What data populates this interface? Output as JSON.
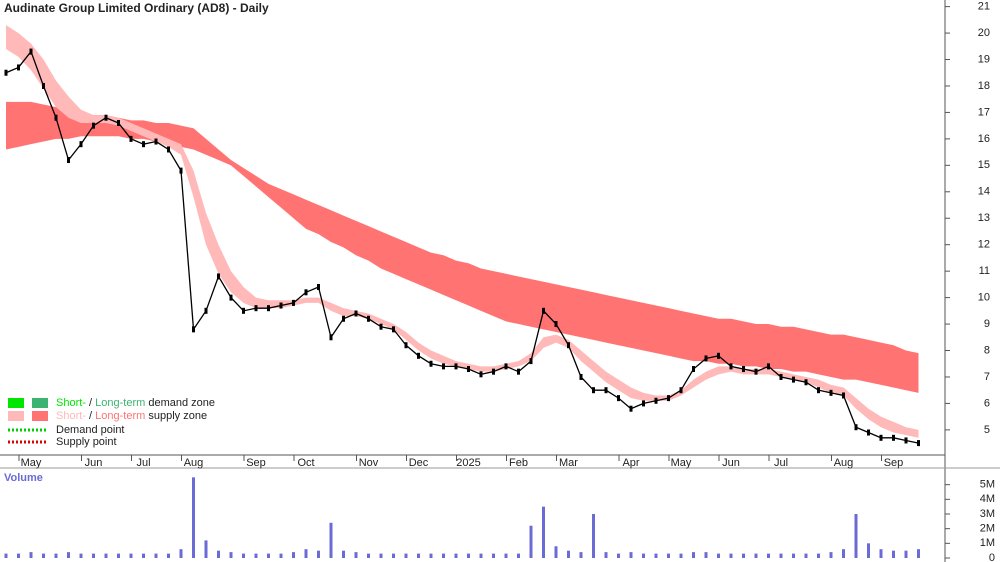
{
  "chart_data": [
    {
      "type": "stock",
      "title": "Audinate Group Limited Ordinary (AD8) - Daily",
      "categories": [
        null,
        null,
        "May",
        null,
        null,
        null,
        null,
        "Jun",
        null,
        null,
        null,
        "Jul",
        null,
        null,
        null,
        "Aug",
        null,
        null,
        null,
        null,
        "Sep",
        null,
        null,
        null,
        "Oct",
        null,
        null,
        null,
        null,
        "Nov",
        null,
        null,
        null,
        "Dec",
        null,
        null,
        null,
        "2025",
        null,
        null,
        null,
        "Feb",
        null,
        null,
        null,
        "Mar",
        null,
        null,
        null,
        null,
        "Apr",
        null,
        null,
        null,
        "May",
        null,
        null,
        null,
        "Jun",
        null,
        null,
        null,
        "Jul",
        null,
        null,
        null,
        null,
        "Aug",
        null,
        null,
        null,
        "Sep",
        null,
        null
      ],
      "ylim": [
        4.05,
        21.25
      ],
      "yticks": [
        5,
        6,
        7,
        8,
        9,
        10,
        11,
        12,
        13,
        14,
        15,
        16,
        17,
        18,
        19,
        20,
        21
      ],
      "price": {
        "color": "#000000",
        "values": [
          18.5,
          18.7,
          19.3,
          18.0,
          16.8,
          15.2,
          15.8,
          16.5,
          16.8,
          16.6,
          16.0,
          15.8,
          15.9,
          15.6,
          14.8,
          8.8,
          9.5,
          10.8,
          10.0,
          9.5,
          9.6,
          9.6,
          9.7,
          9.8,
          10.2,
          10.4,
          8.5,
          9.2,
          9.4,
          9.2,
          8.9,
          8.8,
          8.2,
          7.8,
          7.5,
          7.4,
          7.4,
          7.3,
          7.1,
          7.2,
          7.4,
          7.2,
          7.6,
          9.5,
          9.0,
          8.2,
          7.0,
          6.5,
          6.5,
          6.2,
          5.8,
          6.0,
          6.1,
          6.2,
          6.5,
          7.3,
          7.7,
          7.8,
          7.4,
          7.3,
          7.2,
          7.4,
          7.0,
          6.9,
          6.8,
          6.5,
          6.4,
          6.3,
          5.1,
          4.9,
          4.7,
          4.7,
          4.6,
          4.5
        ]
      },
      "bands": [
        {
          "color": "#ff7373",
          "upper": [
            17.4,
            17.4,
            17.4,
            17.3,
            17.2,
            17.1,
            17.0,
            16.9,
            16.9,
            16.8,
            16.7,
            16.7,
            16.6,
            16.6,
            16.5,
            16.4,
            16.0,
            15.6,
            15.2,
            14.9,
            14.6,
            14.3,
            14.1,
            13.9,
            13.7,
            13.5,
            13.3,
            13.1,
            12.9,
            12.7,
            12.5,
            12.3,
            12.1,
            11.9,
            11.7,
            11.6,
            11.4,
            11.3,
            11.1,
            11.0,
            10.9,
            10.8,
            10.7,
            10.6,
            10.5,
            10.4,
            10.3,
            10.2,
            10.1,
            10.0,
            9.9,
            9.8,
            9.7,
            9.6,
            9.5,
            9.4,
            9.3,
            9.2,
            9.2,
            9.1,
            9.0,
            9.0,
            8.9,
            8.9,
            8.8,
            8.7,
            8.6,
            8.6,
            8.5,
            8.4,
            8.3,
            8.2,
            8.0,
            7.9
          ],
          "lower": [
            15.6,
            15.7,
            15.8,
            15.9,
            16.0,
            16.0,
            16.1,
            16.1,
            16.1,
            16.1,
            16.0,
            16.0,
            15.9,
            15.8,
            15.7,
            15.6,
            15.4,
            15.2,
            15.0,
            14.6,
            14.2,
            13.8,
            13.4,
            13.0,
            12.6,
            12.4,
            12.1,
            11.9,
            11.6,
            11.4,
            11.1,
            10.9,
            10.7,
            10.5,
            10.3,
            10.1,
            9.9,
            9.7,
            9.5,
            9.3,
            9.1,
            9.0,
            8.9,
            8.8,
            8.7,
            8.6,
            8.5,
            8.4,
            8.3,
            8.2,
            8.1,
            8.0,
            7.9,
            7.8,
            7.7,
            7.6,
            7.6,
            7.5,
            7.5,
            7.4,
            7.4,
            7.3,
            7.3,
            7.2,
            7.2,
            7.1,
            7.0,
            6.9,
            6.9,
            6.8,
            6.7,
            6.6,
            6.5,
            6.4
          ]
        },
        {
          "color": "#ffb9b9",
          "upper": [
            20.3,
            20.0,
            19.6,
            19.0,
            18.2,
            17.6,
            17.1,
            16.9,
            16.9,
            16.8,
            16.6,
            16.4,
            16.2,
            16.0,
            15.8,
            14.8,
            13.2,
            12.0,
            11.0,
            10.4,
            10.0,
            9.9,
            9.9,
            9.9,
            10.0,
            10.0,
            9.8,
            9.6,
            9.5,
            9.4,
            9.2,
            9.0,
            8.7,
            8.3,
            8.0,
            7.8,
            7.6,
            7.5,
            7.4,
            7.4,
            7.5,
            7.6,
            7.9,
            8.5,
            8.6,
            8.4,
            8.0,
            7.6,
            7.2,
            6.9,
            6.6,
            6.4,
            6.3,
            6.3,
            6.5,
            6.9,
            7.2,
            7.4,
            7.4,
            7.3,
            7.3,
            7.3,
            7.2,
            7.1,
            7.0,
            6.9,
            6.7,
            6.6,
            6.2,
            5.8,
            5.5,
            5.3,
            5.1,
            5.0
          ],
          "lower": [
            19.4,
            19.1,
            18.6,
            17.9,
            17.2,
            16.8,
            16.6,
            16.6,
            16.6,
            16.5,
            16.3,
            16.1,
            15.9,
            15.7,
            15.4,
            13.8,
            12.0,
            10.9,
            10.2,
            9.8,
            9.6,
            9.6,
            9.6,
            9.7,
            9.8,
            9.8,
            9.5,
            9.3,
            9.3,
            9.2,
            9.0,
            8.8,
            8.4,
            8.0,
            7.7,
            7.5,
            7.4,
            7.3,
            7.2,
            7.2,
            7.3,
            7.4,
            7.6,
            8.1,
            8.3,
            8.1,
            7.6,
            7.2,
            6.8,
            6.5,
            6.2,
            6.1,
            6.1,
            6.1,
            6.3,
            6.6,
            6.9,
            7.1,
            7.2,
            7.1,
            7.1,
            7.1,
            7.0,
            6.9,
            6.8,
            6.6,
            6.4,
            6.3,
            5.8,
            5.4,
            5.1,
            4.9,
            4.8,
            4.7
          ]
        }
      ],
      "legend": {
        "zones": [
          {
            "short": "Short-",
            "sep": "/",
            "long": "Long-term",
            "label": "demand zone",
            "short_color": "#00e600",
            "long_color": "#3cb371"
          },
          {
            "short": "Short-",
            "sep": "/",
            "long": "Long-term",
            "label": "supply zone",
            "short_color": "#ffb9b9",
            "long_color": "#ff7373"
          }
        ],
        "points": [
          {
            "label": "Demand point",
            "color": "#00cc00"
          },
          {
            "label": "Supply point",
            "color": "#dd0000"
          }
        ]
      }
    },
    {
      "type": "bar",
      "title": "Volume",
      "color": "#6b6bd6",
      "values": [
        0.3,
        0.3,
        0.4,
        0.3,
        0.3,
        0.4,
        0.3,
        0.3,
        0.3,
        0.3,
        0.3,
        0.3,
        0.3,
        0.3,
        0.6,
        5.5,
        1.2,
        0.5,
        0.4,
        0.3,
        0.3,
        0.3,
        0.3,
        0.4,
        0.6,
        0.5,
        2.4,
        0.5,
        0.4,
        0.3,
        0.3,
        0.3,
        0.3,
        0.3,
        0.3,
        0.3,
        0.3,
        0.3,
        0.3,
        0.3,
        0.3,
        0.3,
        2.2,
        3.5,
        0.8,
        0.5,
        0.4,
        3.0,
        0.4,
        0.3,
        0.4,
        0.3,
        0.3,
        0.3,
        0.3,
        0.4,
        0.4,
        0.3,
        0.3,
        0.3,
        0.3,
        0.3,
        0.3,
        0.3,
        0.3,
        0.3,
        0.4,
        0.6,
        3.0,
        1.0,
        0.6,
        0.5,
        0.5,
        0.6
      ],
      "ylim": [
        0,
        6
      ],
      "yticks": [
        {
          "value": 0,
          "label": "0"
        },
        {
          "value": 1,
          "label": "1M"
        },
        {
          "value": 2,
          "label": "2M"
        },
        {
          "value": 3,
          "label": "3M"
        },
        {
          "value": 4,
          "label": "4M"
        },
        {
          "value": 5,
          "label": "5M"
        }
      ]
    }
  ]
}
